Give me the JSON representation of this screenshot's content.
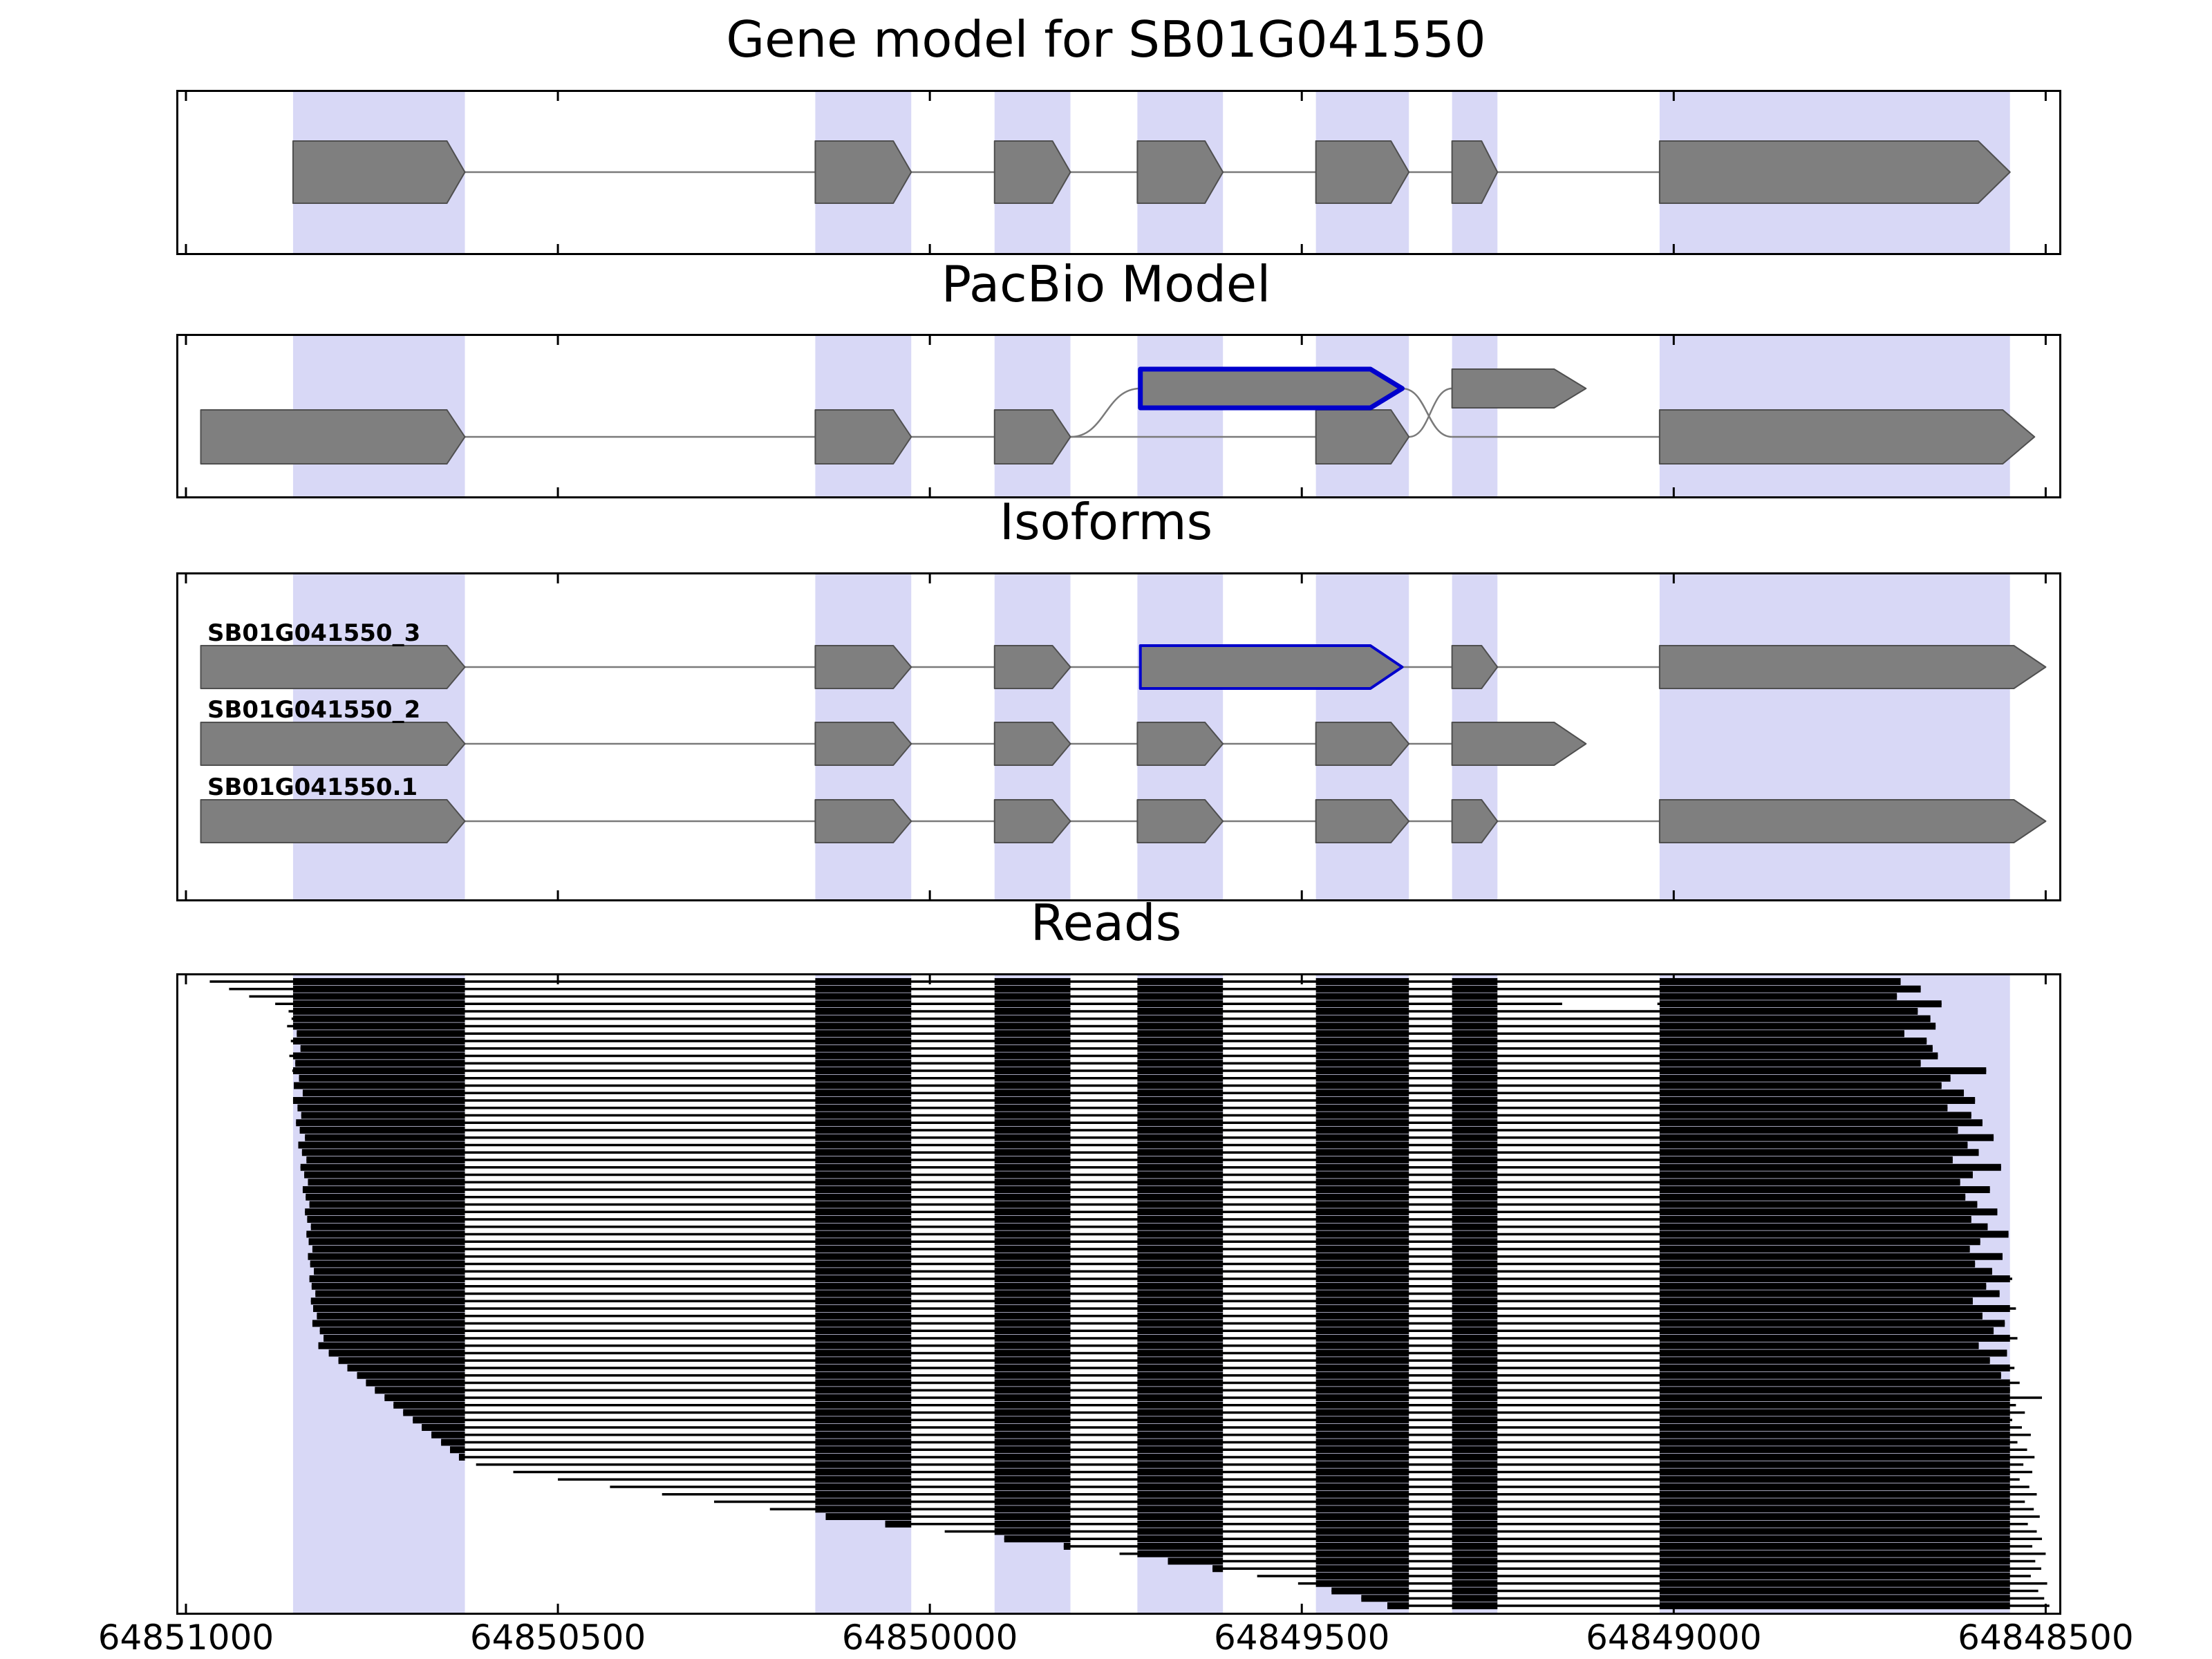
{
  "figure": {
    "panels": [
      {
        "id": "gene_model",
        "title": "Gene model for SB01G041550"
      },
      {
        "id": "pacbio",
        "title": "PacBio Model"
      },
      {
        "id": "isoforms",
        "title": "Isoforms"
      },
      {
        "id": "reads",
        "title": "Reads"
      }
    ]
  },
  "chart_data": {
    "type": "gene-model-browser",
    "title": "Gene model for SB01G041550",
    "xlim": [
      64851013,
      64848479
    ],
    "x_ticks": [
      64851000,
      64850500,
      64850000,
      64849500,
      64849000,
      64848500
    ],
    "x_tick_labels": [
      "64851000",
      "64850500",
      "64850000",
      "64849500",
      "64849000",
      "64848500"
    ],
    "colors": {
      "band": "#d8d8f6",
      "exon_fill": "#7f7f7f",
      "exon_edge": "#4f4f4f",
      "line": "#7a7a7a",
      "highlight_edge": "#0000cc",
      "read": "#000000",
      "border": "#000000"
    },
    "highlight_bands": [
      [
        64850856,
        64850625
      ],
      [
        64850154,
        64850025
      ],
      [
        64849913,
        64849811
      ],
      [
        64849721,
        64849606
      ],
      [
        64849481,
        64849356
      ],
      [
        64849298,
        64849237
      ],
      [
        64849019,
        64848548
      ]
    ],
    "gene_model": {
      "lines": [
        [
          64850856,
          64848548
        ]
      ],
      "exons": [
        {
          "span": [
            64850856,
            64850625
          ]
        },
        {
          "span": [
            64850154,
            64850025
          ]
        },
        {
          "span": [
            64849913,
            64849811
          ]
        },
        {
          "span": [
            64849721,
            64849606
          ]
        },
        {
          "span": [
            64849481,
            64849356
          ]
        },
        {
          "span": [
            64849298,
            64849237
          ]
        },
        {
          "span": [
            64849019,
            64848548
          ],
          "arrow": true
        }
      ]
    },
    "pacbio_model": {
      "lines": [
        [
          64850980,
          64849356
        ],
        [
          64849298,
          64849019
        ]
      ],
      "curves": [
        {
          "from": [
            64849811,
            "line"
          ],
          "to": [
            64849717,
            "raised"
          ]
        },
        {
          "from": [
            64849365,
            "raised"
          ],
          "to": [
            64849298,
            "line"
          ]
        },
        {
          "from": [
            64849356,
            "line"
          ],
          "to": [
            64849298,
            "raised"
          ]
        }
      ],
      "exons": [
        {
          "span": [
            64850980,
            64850625
          ]
        },
        {
          "span": [
            64850154,
            64850025
          ]
        },
        {
          "span": [
            64849913,
            64849811
          ]
        },
        {
          "span": [
            64849481,
            64849356
          ]
        },
        {
          "span": [
            64849717,
            64849365
          ],
          "raised": true,
          "blue": true,
          "arrow": true
        },
        {
          "span": [
            64849298,
            64849118
          ],
          "raised": true,
          "arrow": true
        },
        {
          "span": [
            64849019,
            64848515
          ],
          "arrow": true
        }
      ]
    },
    "isoforms": [
      {
        "name": "SB01G041550_3",
        "exons": [
          {
            "span": [
              64850980,
              64850625
            ]
          },
          {
            "span": [
              64850154,
              64850025
            ]
          },
          {
            "span": [
              64849913,
              64849811
            ]
          },
          {
            "span": [
              64849717,
              64849365
            ],
            "blue": true,
            "arrow": true
          },
          {
            "span": [
              64849298,
              64849237
            ]
          },
          {
            "span": [
              64849019,
              64848500
            ],
            "arrow": true
          }
        ]
      },
      {
        "name": "SB01G041550_2",
        "exons": [
          {
            "span": [
              64850980,
              64850625
            ]
          },
          {
            "span": [
              64850154,
              64850025
            ]
          },
          {
            "span": [
              64849913,
              64849811
            ]
          },
          {
            "span": [
              64849721,
              64849606
            ]
          },
          {
            "span": [
              64849481,
              64849356
            ]
          },
          {
            "span": [
              64849298,
              64849118
            ],
            "arrow": true
          }
        ]
      },
      {
        "name": "SB01G041550.1",
        "exons": [
          {
            "span": [
              64850980,
              64850625
            ]
          },
          {
            "span": [
              64850154,
              64850025
            ]
          },
          {
            "span": [
              64849913,
              64849811
            ]
          },
          {
            "span": [
              64849721,
              64849606
            ]
          },
          {
            "span": [
              64849481,
              64849356
            ]
          },
          {
            "span": [
              64849298,
              64849237
            ]
          },
          {
            "span": [
              64849019,
              64848500
            ],
            "arrow": true
          }
        ]
      }
    ],
    "reads": [
      [
        64850968,
        64848695
      ],
      [
        64850942,
        64848668
      ],
      [
        64850915,
        64848700
      ],
      [
        64850880,
        64848640,
        64849150,
        64849022
      ],
      [
        64850862,
        64848672
      ],
      [
        64850858,
        64848655
      ],
      [
        64850864,
        64848648
      ],
      [
        64850851,
        64848690
      ],
      [
        64850859,
        64848660
      ],
      [
        64850846,
        64848652
      ],
      [
        64850861,
        64848645
      ],
      [
        64850853,
        64848668
      ],
      [
        64850857,
        64848580
      ],
      [
        64850848,
        64848628
      ],
      [
        64850855,
        64848640
      ],
      [
        64850843,
        64848610
      ],
      [
        64850856,
        64848595
      ],
      [
        64850850,
        64848632
      ],
      [
        64850845,
        64848600
      ],
      [
        64850852,
        64848585
      ],
      [
        64850847,
        64848618
      ],
      [
        64850840,
        64848570
      ],
      [
        64850849,
        64848605
      ],
      [
        64850844,
        64848590
      ],
      [
        64850838,
        64848625
      ],
      [
        64850846,
        64848560
      ],
      [
        64850841,
        64848598
      ],
      [
        64850836,
        64848615
      ],
      [
        64850843,
        64848575
      ],
      [
        64850839,
        64848608
      ],
      [
        64850834,
        64848592
      ],
      [
        64850840,
        64848565
      ],
      [
        64850837,
        64848600
      ],
      [
        64850832,
        64848578
      ],
      [
        64850838,
        64848550
      ],
      [
        64850835,
        64848588
      ],
      [
        64850830,
        64848602
      ],
      [
        64850836,
        64848558
      ],
      [
        64850833,
        64848595
      ],
      [
        64850828,
        64848572
      ],
      [
        64850834,
        64848545
      ],
      [
        64850831,
        64848580
      ],
      [
        64850826,
        64848562
      ],
      [
        64850832,
        64848598
      ],
      [
        64850829,
        64848540
      ],
      [
        64850824,
        64848585
      ],
      [
        64850830,
        64848555
      ],
      [
        64850820,
        64848570
      ],
      [
        64850815,
        64848538
      ],
      [
        64850822,
        64848590
      ],
      [
        64850808,
        64848552
      ],
      [
        64850795,
        64848575
      ],
      [
        64850783,
        64848542
      ],
      [
        64850770,
        64848560
      ],
      [
        64850758,
        64848535
      ],
      [
        64850746,
        64848548
      ],
      [
        64850733,
        64848505
      ],
      [
        64850721,
        64848540
      ],
      [
        64850708,
        64848528
      ],
      [
        64850695,
        64848545
      ],
      [
        64850683,
        64848532
      ],
      [
        64850670,
        64848520
      ],
      [
        64850657,
        64848538
      ],
      [
        64850645,
        64848525
      ],
      [
        64850633,
        64848515
      ],
      [
        64850610,
        64848530
      ],
      [
        64850560,
        64848518
      ],
      [
        64850500,
        64848535
      ],
      [
        64850430,
        64848522
      ],
      [
        64850360,
        64848512
      ],
      [
        64850290,
        64848528
      ],
      [
        64850215,
        64848516
      ],
      [
        64850140,
        64848508
      ],
      [
        64850060,
        64848524
      ],
      [
        64849980,
        64848512
      ],
      [
        64849900,
        64848505
      ],
      [
        64849820,
        64848518
      ],
      [
        64849745,
        64848500
      ],
      [
        64849680,
        64848514
      ],
      [
        64849620,
        64848506
      ],
      [
        64849560,
        64848520
      ],
      [
        64849505,
        64848498
      ],
      [
        64849460,
        64848510
      ],
      [
        64849420,
        64848502
      ],
      [
        64849385,
        64848495
      ]
    ]
  }
}
